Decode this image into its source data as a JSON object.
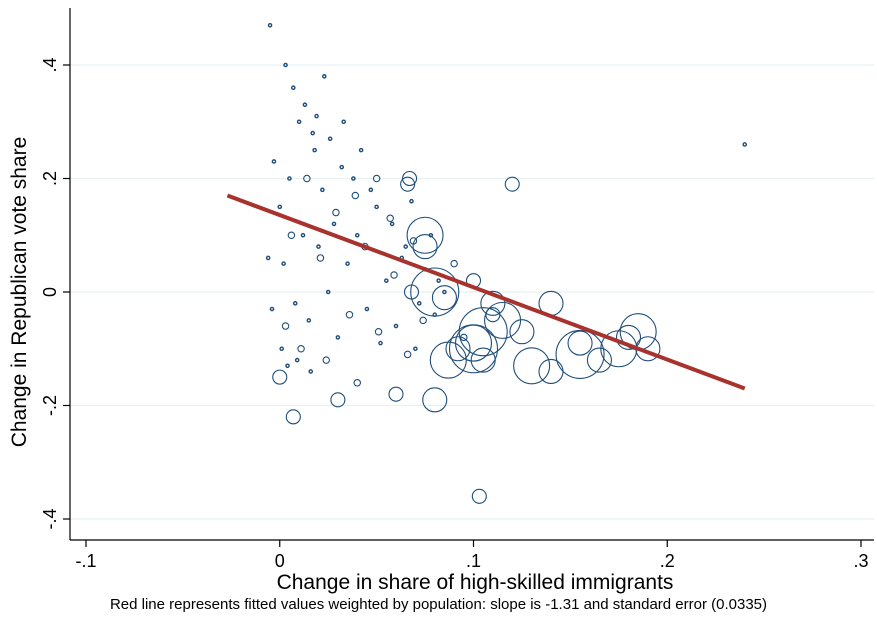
{
  "chart_data": {
    "type": "scatter",
    "title": "",
    "xlabel": "Change in share of high-skilled immigrants",
    "ylabel": "Change in Republican vote share",
    "xlim": [
      -0.1,
      0.3
    ],
    "ylim": [
      -0.4,
      0.45
    ],
    "x_ticks": [
      -0.1,
      0,
      0.1,
      0.2,
      0.3
    ],
    "x_tick_labels": [
      "-.1",
      "0",
      ".1",
      ".2",
      ".3"
    ],
    "y_ticks": [
      -0.4,
      -0.2,
      0,
      0.2,
      0.4
    ],
    "y_tick_labels": [
      "-.4",
      "-.2",
      "0",
      ".2",
      ".4"
    ],
    "grid": "horizontal",
    "colors": {
      "points": "#1f4e79",
      "fit_line": "#a8322d",
      "grid": "#e8f1f2"
    },
    "fit_line": {
      "x": [
        -0.027,
        0.24
      ],
      "y": [
        0.17,
        -0.17
      ],
      "slope": -1.31,
      "standard_error": 0.0335
    },
    "note": "Red line represents fitted values weighted by population: slope is -1.31 and standard error (0.0335)",
    "series": [
      {
        "marker": "hollow circle sized by population",
        "points": [
          {
            "x": 0.0,
            "y": 0.15,
            "size": 1
          },
          {
            "x": 0.002,
            "y": 0.05,
            "size": 1
          },
          {
            "x": 0.005,
            "y": 0.2,
            "size": 1
          },
          {
            "x": 0.008,
            "y": -0.02,
            "size": 1
          },
          {
            "x": 0.01,
            "y": 0.3,
            "size": 1
          },
          {
            "x": 0.012,
            "y": 0.1,
            "size": 1
          },
          {
            "x": 0.015,
            "y": -0.05,
            "size": 1
          },
          {
            "x": 0.018,
            "y": 0.25,
            "size": 1
          },
          {
            "x": 0.02,
            "y": 0.08,
            "size": 1
          },
          {
            "x": 0.022,
            "y": 0.18,
            "size": 1
          },
          {
            "x": 0.025,
            "y": 0.0,
            "size": 1
          },
          {
            "x": 0.028,
            "y": 0.12,
            "size": 1
          },
          {
            "x": 0.03,
            "y": -0.08,
            "size": 1
          },
          {
            "x": 0.032,
            "y": 0.22,
            "size": 1
          },
          {
            "x": 0.035,
            "y": 0.05,
            "size": 1
          },
          {
            "x": 0.04,
            "y": 0.1,
            "size": 1
          },
          {
            "x": 0.045,
            "y": -0.03,
            "size": 1
          },
          {
            "x": 0.05,
            "y": 0.15,
            "size": 1
          },
          {
            "x": 0.055,
            "y": 0.02,
            "size": 1
          },
          {
            "x": 0.06,
            "y": -0.06,
            "size": 1
          },
          {
            "x": 0.065,
            "y": 0.08,
            "size": 1
          },
          {
            "x": 0.07,
            "y": -0.1,
            "size": 1
          },
          {
            "x": 0.075,
            "y": 0.04,
            "size": 1
          },
          {
            "x": 0.08,
            "y": -0.04,
            "size": 1
          },
          {
            "x": 0.085,
            "y": 0.0,
            "size": 1
          },
          {
            "x": 0.003,
            "y": 0.4,
            "size": 1
          },
          {
            "x": 0.007,
            "y": 0.36,
            "size": 1
          },
          {
            "x": 0.013,
            "y": 0.33,
            "size": 1
          },
          {
            "x": 0.017,
            "y": 0.28,
            "size": 1
          },
          {
            "x": 0.023,
            "y": 0.38,
            "size": 1
          },
          {
            "x": -0.004,
            "y": -0.03,
            "size": 1
          },
          {
            "x": -0.006,
            "y": 0.06,
            "size": 1
          },
          {
            "x": -0.003,
            "y": 0.23,
            "size": 1
          },
          {
            "x": 0.001,
            "y": -0.1,
            "size": 1
          },
          {
            "x": 0.004,
            "y": -0.13,
            "size": 1
          },
          {
            "x": 0.009,
            "y": -0.12,
            "size": 1
          },
          {
            "x": 0.016,
            "y": -0.14,
            "size": 1
          },
          {
            "x": 0.019,
            "y": 0.31,
            "size": 1
          },
          {
            "x": 0.026,
            "y": 0.27,
            "size": 1
          },
          {
            "x": 0.033,
            "y": 0.3,
            "size": 1
          },
          {
            "x": 0.038,
            "y": 0.2,
            "size": 1
          },
          {
            "x": 0.042,
            "y": 0.25,
            "size": 1
          },
          {
            "x": 0.047,
            "y": 0.18,
            "size": 1
          },
          {
            "x": 0.052,
            "y": -0.09,
            "size": 1
          },
          {
            "x": 0.058,
            "y": 0.12,
            "size": 1
          },
          {
            "x": 0.063,
            "y": 0.06,
            "size": 1
          },
          {
            "x": 0.068,
            "y": 0.16,
            "size": 1
          },
          {
            "x": 0.072,
            "y": -0.02,
            "size": 1
          },
          {
            "x": 0.078,
            "y": 0.1,
            "size": 1
          },
          {
            "x": 0.082,
            "y": 0.02,
            "size": 1
          },
          {
            "x": 0.006,
            "y": 0.1,
            "size": 2
          },
          {
            "x": 0.014,
            "y": 0.2,
            "size": 2
          },
          {
            "x": 0.021,
            "y": 0.06,
            "size": 2
          },
          {
            "x": 0.029,
            "y": 0.14,
            "size": 2
          },
          {
            "x": 0.036,
            "y": -0.04,
            "size": 2
          },
          {
            "x": 0.044,
            "y": 0.08,
            "size": 2
          },
          {
            "x": 0.051,
            "y": -0.07,
            "size": 2
          },
          {
            "x": 0.059,
            "y": 0.03,
            "size": 2
          },
          {
            "x": 0.066,
            "y": -0.11,
            "size": 2
          },
          {
            "x": 0.074,
            "y": -0.05,
            "size": 2
          },
          {
            "x": 0.011,
            "y": -0.1,
            "size": 2
          },
          {
            "x": 0.024,
            "y": -0.12,
            "size": 2
          },
          {
            "x": 0.039,
            "y": 0.17,
            "size": 2
          },
          {
            "x": 0.057,
            "y": 0.13,
            "size": 2
          },
          {
            "x": 0.069,
            "y": 0.09,
            "size": 2
          },
          {
            "x": 0.04,
            "y": -0.16,
            "size": 2
          },
          {
            "x": 0.05,
            "y": 0.2,
            "size": 2
          },
          {
            "x": 0.003,
            "y": -0.06,
            "size": 2
          },
          {
            "x": 0.09,
            "y": 0.05,
            "size": 2
          },
          {
            "x": 0.095,
            "y": -0.08,
            "size": 2
          },
          {
            "x": 0.0,
            "y": -0.15,
            "size": 3
          },
          {
            "x": 0.007,
            "y": -0.22,
            "size": 3
          },
          {
            "x": 0.066,
            "y": 0.19,
            "size": 3
          },
          {
            "x": 0.067,
            "y": 0.2,
            "size": 3
          },
          {
            "x": 0.12,
            "y": 0.19,
            "size": 3
          },
          {
            "x": 0.06,
            "y": -0.18,
            "size": 3
          },
          {
            "x": 0.03,
            "y": -0.19,
            "size": 3
          },
          {
            "x": 0.068,
            "y": 0.0,
            "size": 3
          },
          {
            "x": 0.1,
            "y": 0.02,
            "size": 3
          },
          {
            "x": 0.11,
            "y": -0.04,
            "size": 3
          },
          {
            "x": 0.08,
            "y": -0.19,
            "size": 4
          },
          {
            "x": 0.092,
            "y": -0.1,
            "size": 4
          },
          {
            "x": 0.105,
            "y": -0.12,
            "size": 4
          },
          {
            "x": 0.11,
            "y": -0.02,
            "size": 4
          },
          {
            "x": 0.125,
            "y": -0.07,
            "size": 4
          },
          {
            "x": 0.14,
            "y": -0.14,
            "size": 4
          },
          {
            "x": 0.155,
            "y": -0.09,
            "size": 4
          },
          {
            "x": 0.165,
            "y": -0.12,
            "size": 4
          },
          {
            "x": 0.18,
            "y": -0.08,
            "size": 4
          },
          {
            "x": 0.19,
            "y": -0.1,
            "size": 4
          },
          {
            "x": 0.14,
            "y": -0.02,
            "size": 4
          },
          {
            "x": 0.075,
            "y": 0.08,
            "size": 4
          },
          {
            "x": 0.085,
            "y": -0.01,
            "size": 4
          },
          {
            "x": 0.075,
            "y": 0.1,
            "size": 5
          },
          {
            "x": 0.1,
            "y": -0.09,
            "size": 5
          },
          {
            "x": 0.13,
            "y": -0.13,
            "size": 5
          },
          {
            "x": 0.175,
            "y": -0.1,
            "size": 5
          },
          {
            "x": 0.185,
            "y": -0.07,
            "size": 5
          },
          {
            "x": 0.087,
            "y": -0.12,
            "size": 5
          },
          {
            "x": 0.115,
            "y": -0.05,
            "size": 5
          },
          {
            "x": 0.08,
            "y": 0.0,
            "size": 6
          },
          {
            "x": 0.105,
            "y": -0.07,
            "size": 6
          },
          {
            "x": 0.155,
            "y": -0.11,
            "size": 6
          },
          {
            "x": 0.1,
            "y": -0.1,
            "size": 6
          },
          {
            "x": 0.103,
            "y": -0.36,
            "size": 3
          },
          {
            "x": 0.24,
            "y": 0.26,
            "size": 1
          },
          {
            "x": -0.005,
            "y": 0.47,
            "size": 1
          }
        ]
      }
    ]
  }
}
